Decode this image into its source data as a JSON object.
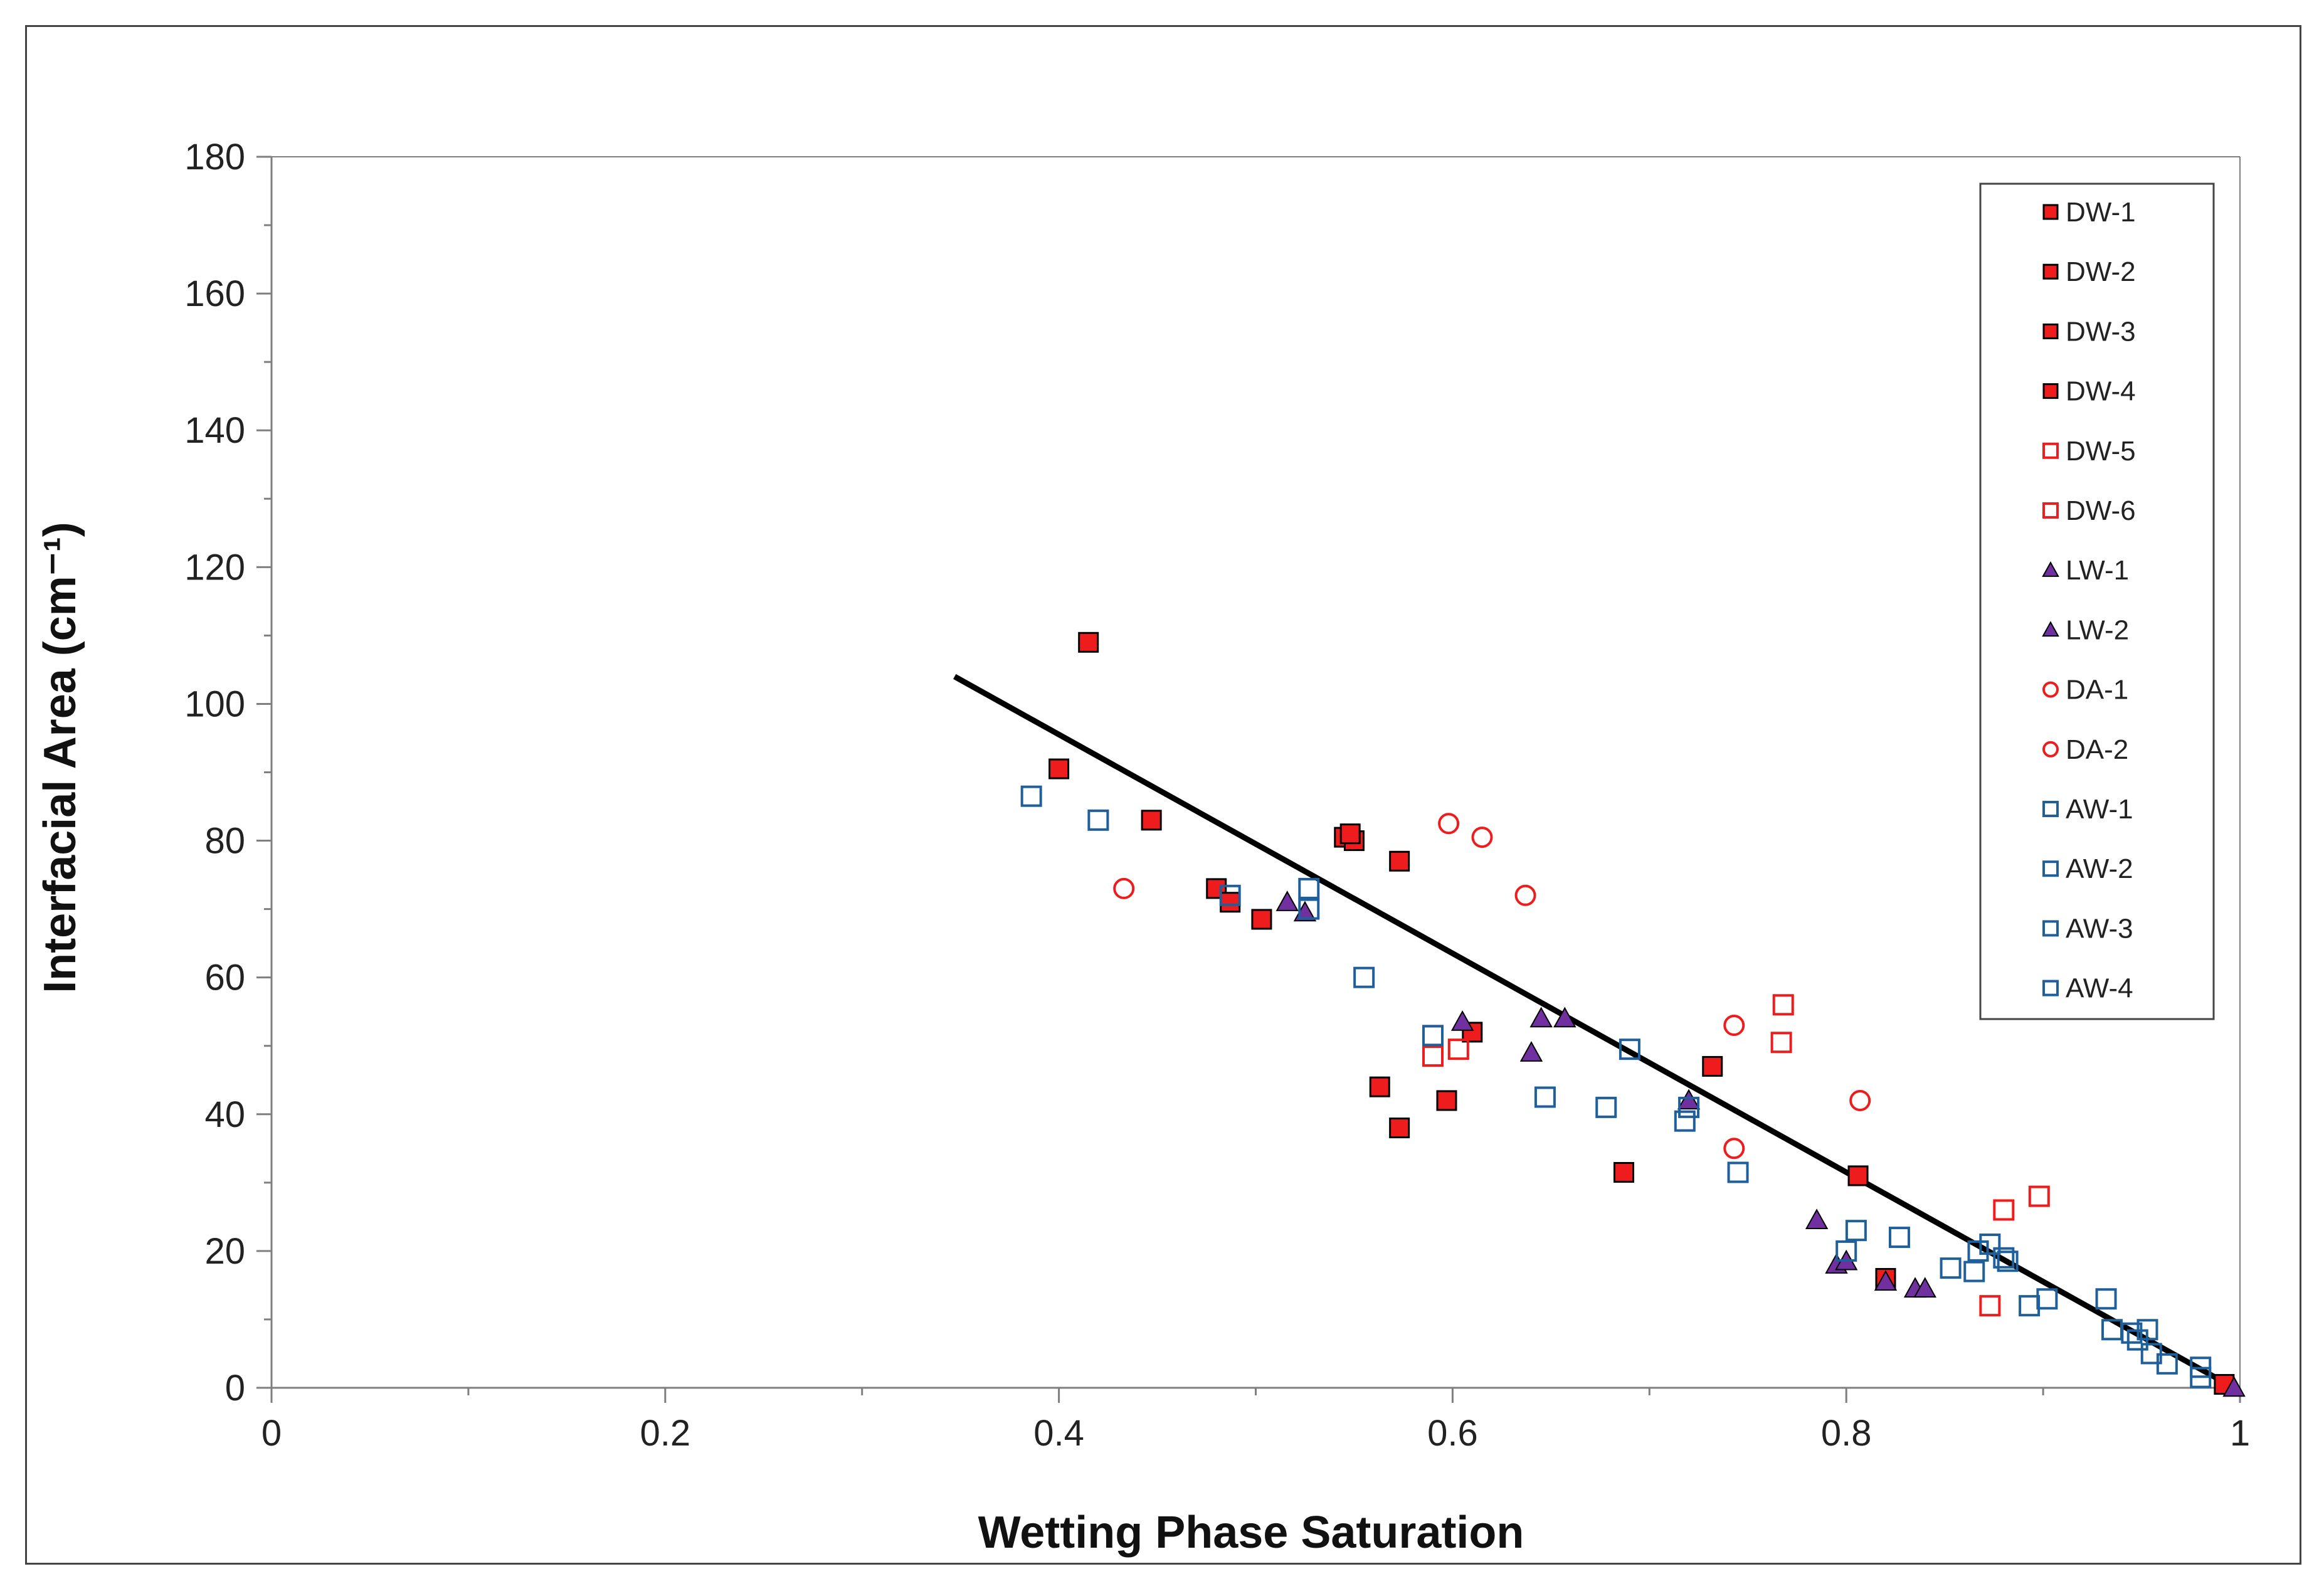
{
  "chart_data": {
    "type": "scatter",
    "title": "",
    "xlabel": "Wetting Phase Saturation",
    "ylabel": "Interfacial Area (cm⁻¹)",
    "xlim": [
      0,
      1
    ],
    "ylim": [
      0,
      180
    ],
    "xticks": [
      0,
      0.2,
      0.4,
      0.6,
      0.8,
      1
    ],
    "xtick_labels": [
      "0",
      "0.2",
      "0.4",
      "0.6",
      "0.8",
      "1"
    ],
    "yticks": [
      0,
      20,
      40,
      60,
      80,
      100,
      120,
      140,
      160,
      180
    ],
    "ytick_labels": [
      "0",
      "20",
      "40",
      "60",
      "80",
      "100",
      "120",
      "140",
      "160",
      "180"
    ],
    "grid": false,
    "legend_position": "top-right",
    "colors": {
      "red": "#ee1c1c",
      "purple": "#7030a0",
      "blue": "#1f5f9a",
      "trend": "#000000"
    },
    "trendline": {
      "x": [
        0.347,
        0.997
      ],
      "y": [
        104,
        0
      ]
    },
    "series": [
      {
        "name": "DW-1",
        "marker": "square",
        "fill": "#ee1c1c",
        "stroke": "#000000",
        "points": [
          [
            0.415,
            109
          ],
          [
            0.4,
            90.5
          ],
          [
            0.447,
            83
          ],
          [
            0.545,
            80.5
          ],
          [
            0.55,
            80
          ]
        ]
      },
      {
        "name": "DW-2",
        "marker": "square",
        "fill": "#ee1c1c",
        "stroke": "#000000",
        "points": [
          [
            0.48,
            73
          ],
          [
            0.487,
            71
          ],
          [
            0.503,
            68.5
          ],
          [
            0.548,
            81
          ]
        ]
      },
      {
        "name": "DW-3",
        "marker": "square",
        "fill": "#ee1c1c",
        "stroke": "#000000",
        "points": [
          [
            0.573,
            77
          ],
          [
            0.61,
            52
          ],
          [
            0.563,
            44
          ],
          [
            0.597,
            42
          ],
          [
            0.573,
            38
          ]
        ]
      },
      {
        "name": "DW-4",
        "marker": "square",
        "fill": "#ee1c1c",
        "stroke": "#000000",
        "points": [
          [
            0.687,
            31.5
          ],
          [
            0.732,
            47
          ],
          [
            0.806,
            31
          ],
          [
            0.82,
            16
          ],
          [
            0.992,
            0.5
          ]
        ]
      },
      {
        "name": "DW-5",
        "marker": "square",
        "fill": "none",
        "stroke": "#ee1c1c",
        "points": [
          [
            0.59,
            51.5
          ],
          [
            0.59,
            48.5
          ],
          [
            0.603,
            49.5
          ],
          [
            0.767,
            50.5
          ],
          [
            0.768,
            56
          ]
        ]
      },
      {
        "name": "DW-6",
        "marker": "square",
        "fill": "none",
        "stroke": "#ee1c1c",
        "points": [
          [
            0.873,
            12
          ],
          [
            0.88,
            26
          ],
          [
            0.898,
            28
          ]
        ]
      },
      {
        "name": "LW-1",
        "marker": "triangle",
        "fill": "#7030a0",
        "stroke": "#000000",
        "points": [
          [
            0.516,
            71
          ],
          [
            0.525,
            69.5
          ],
          [
            0.605,
            53.5
          ],
          [
            0.64,
            49
          ],
          [
            0.645,
            54
          ],
          [
            0.657,
            54
          ]
        ]
      },
      {
        "name": "LW-2",
        "marker": "triangle",
        "fill": "#7030a0",
        "stroke": "#000000",
        "points": [
          [
            0.72,
            42
          ],
          [
            0.785,
            24.5
          ],
          [
            0.795,
            18
          ],
          [
            0.8,
            18.5
          ],
          [
            0.82,
            15.5
          ],
          [
            0.835,
            14.5
          ],
          [
            0.84,
            14.5
          ],
          [
            0.997,
            0
          ]
        ]
      },
      {
        "name": "DA-1",
        "marker": "circle",
        "fill": "none",
        "stroke": "#ee1c1c",
        "points": [
          [
            0.433,
            73
          ],
          [
            0.598,
            82.5
          ],
          [
            0.615,
            80.5
          ],
          [
            0.637,
            72
          ]
        ]
      },
      {
        "name": "DA-2",
        "marker": "circle",
        "fill": "none",
        "stroke": "#ee1c1c",
        "points": [
          [
            0.743,
            53
          ],
          [
            0.743,
            35
          ],
          [
            0.807,
            42
          ]
        ]
      },
      {
        "name": "AW-1",
        "marker": "square",
        "fill": "none",
        "stroke": "#1f5f9a",
        "points": [
          [
            0.386,
            86.5
          ],
          [
            0.42,
            83
          ],
          [
            0.487,
            72
          ],
          [
            0.527,
            73
          ],
          [
            0.527,
            70
          ]
        ]
      },
      {
        "name": "AW-2",
        "marker": "square",
        "fill": "none",
        "stroke": "#1f5f9a",
        "points": [
          [
            0.555,
            60
          ],
          [
            0.59,
            51.5
          ],
          [
            0.647,
            42.5
          ],
          [
            0.678,
            41
          ],
          [
            0.69,
            49.5
          ],
          [
            0.718,
            39
          ],
          [
            0.72,
            41
          ]
        ]
      },
      {
        "name": "AW-3",
        "marker": "square",
        "fill": "none",
        "stroke": "#1f5f9a",
        "points": [
          [
            0.745,
            31.5
          ],
          [
            0.8,
            20
          ],
          [
            0.805,
            23
          ],
          [
            0.827,
            22
          ],
          [
            0.853,
            17.5
          ],
          [
            0.865,
            17
          ],
          [
            0.867,
            20
          ],
          [
            0.873,
            21
          ],
          [
            0.88,
            19
          ],
          [
            0.882,
            18.5
          ]
        ]
      },
      {
        "name": "AW-4",
        "marker": "square",
        "fill": "none",
        "stroke": "#1f5f9a",
        "points": [
          [
            0.893,
            12
          ],
          [
            0.902,
            13
          ],
          [
            0.932,
            13
          ],
          [
            0.935,
            8.5
          ],
          [
            0.945,
            8
          ],
          [
            0.948,
            7
          ],
          [
            0.953,
            8.5
          ],
          [
            0.955,
            5
          ],
          [
            0.963,
            3.5
          ],
          [
            0.98,
            3
          ],
          [
            0.98,
            1.5
          ]
        ]
      }
    ]
  }
}
